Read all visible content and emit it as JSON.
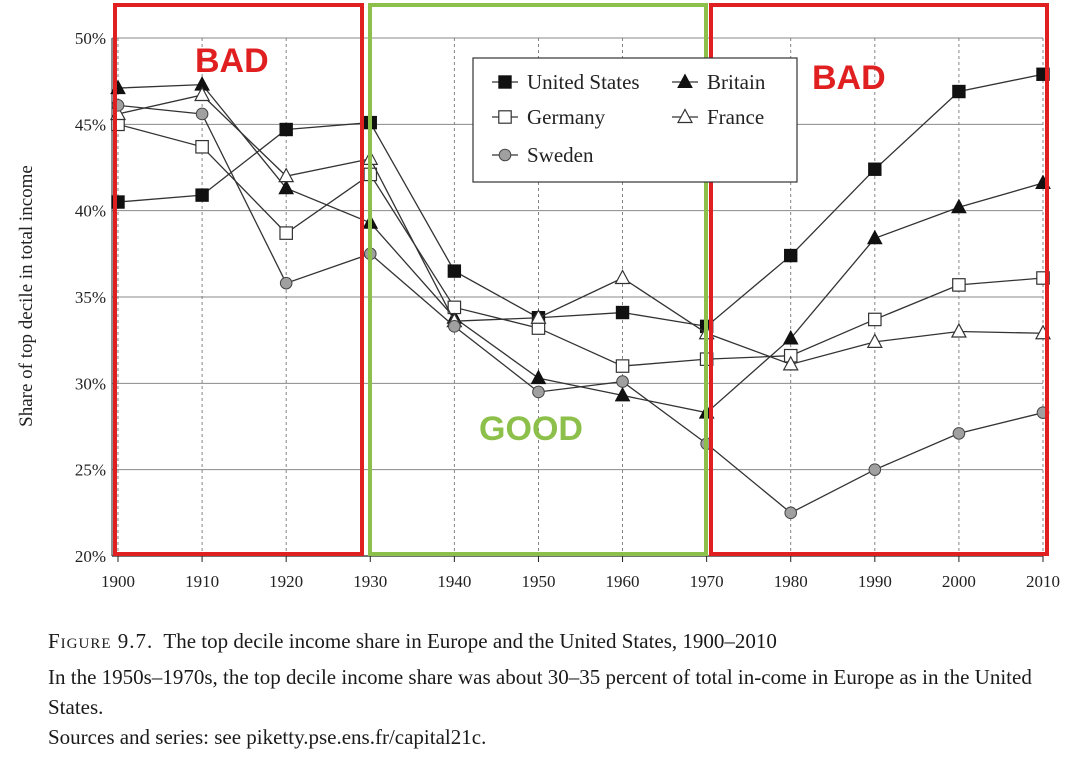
{
  "chart_data": {
    "type": "line",
    "ylabel": "Share of top decile in total income",
    "xlabel": "",
    "x": [
      1900,
      1910,
      1920,
      1930,
      1940,
      1950,
      1960,
      1970,
      1980,
      1990,
      2000,
      2010
    ],
    "x_tick_labels": [
      "1900",
      "1910",
      "1920",
      "1930",
      "1940",
      "1950",
      "1960",
      "1970",
      "1980",
      "1990",
      "2000",
      "2010"
    ],
    "y_tick_labels": [
      "20%",
      "25%",
      "30%",
      "35%",
      "40%",
      "45%",
      "50%"
    ],
    "y_ticks": [
      20,
      25,
      30,
      35,
      40,
      45,
      50
    ],
    "xlim": [
      1900,
      2010
    ],
    "ylim": [
      20,
      50
    ],
    "grid": "horizontal solid, vertical dashed",
    "legend_position": "top-center",
    "series": [
      {
        "name": "United States",
        "marker": "filled-square",
        "values": [
          40.5,
          40.9,
          44.7,
          45.1,
          36.5,
          33.8,
          34.1,
          33.3,
          37.4,
          42.4,
          46.9,
          47.9
        ]
      },
      {
        "name": "Britain",
        "marker": "filled-triangle",
        "values": [
          47.1,
          47.3,
          41.3,
          39.3,
          33.8,
          30.3,
          29.3,
          28.3,
          32.6,
          38.4,
          40.2,
          41.6
        ]
      },
      {
        "name": "Germany",
        "marker": "open-square",
        "values": [
          45.0,
          43.7,
          38.7,
          42.1,
          34.4,
          33.2,
          31.0,
          31.4,
          31.6,
          33.7,
          35.7,
          36.1
        ]
      },
      {
        "name": "France",
        "marker": "open-triangle",
        "values": [
          45.6,
          46.7,
          42.0,
          43.0,
          33.6,
          33.8,
          36.1,
          32.9,
          31.1,
          32.4,
          33.0,
          32.9
        ]
      },
      {
        "name": "Sweden",
        "marker": "gray-circle",
        "values": [
          46.1,
          45.6,
          35.8,
          37.5,
          33.3,
          29.5,
          30.1,
          26.5,
          22.5,
          25.0,
          27.1,
          28.3
        ]
      }
    ],
    "annotations": [
      {
        "label": "BAD",
        "from": 1900,
        "to": 1930,
        "color": "#e02020"
      },
      {
        "label": "GOOD",
        "from": 1930,
        "to": 1970,
        "color": "#8dc04a"
      },
      {
        "label": "BAD",
        "from": 1970,
        "to": 2010,
        "color": "#e02020"
      }
    ]
  },
  "caption": {
    "figure_label": "Figure 9.7.",
    "title": "The top decile income share in Europe and the United States, 1900–2010",
    "note": "In the 1950s–1970s, the top decile income share was about 30–35 percent of total in-come in Europe as in the United States.",
    "sources": "Sources and series: see piketty.pse.ens.fr/capital21c."
  },
  "colors": {
    "bad": "#e02020",
    "good": "#8dc04a",
    "line": "#333333",
    "marker_gray": "#a0a0a0"
  }
}
